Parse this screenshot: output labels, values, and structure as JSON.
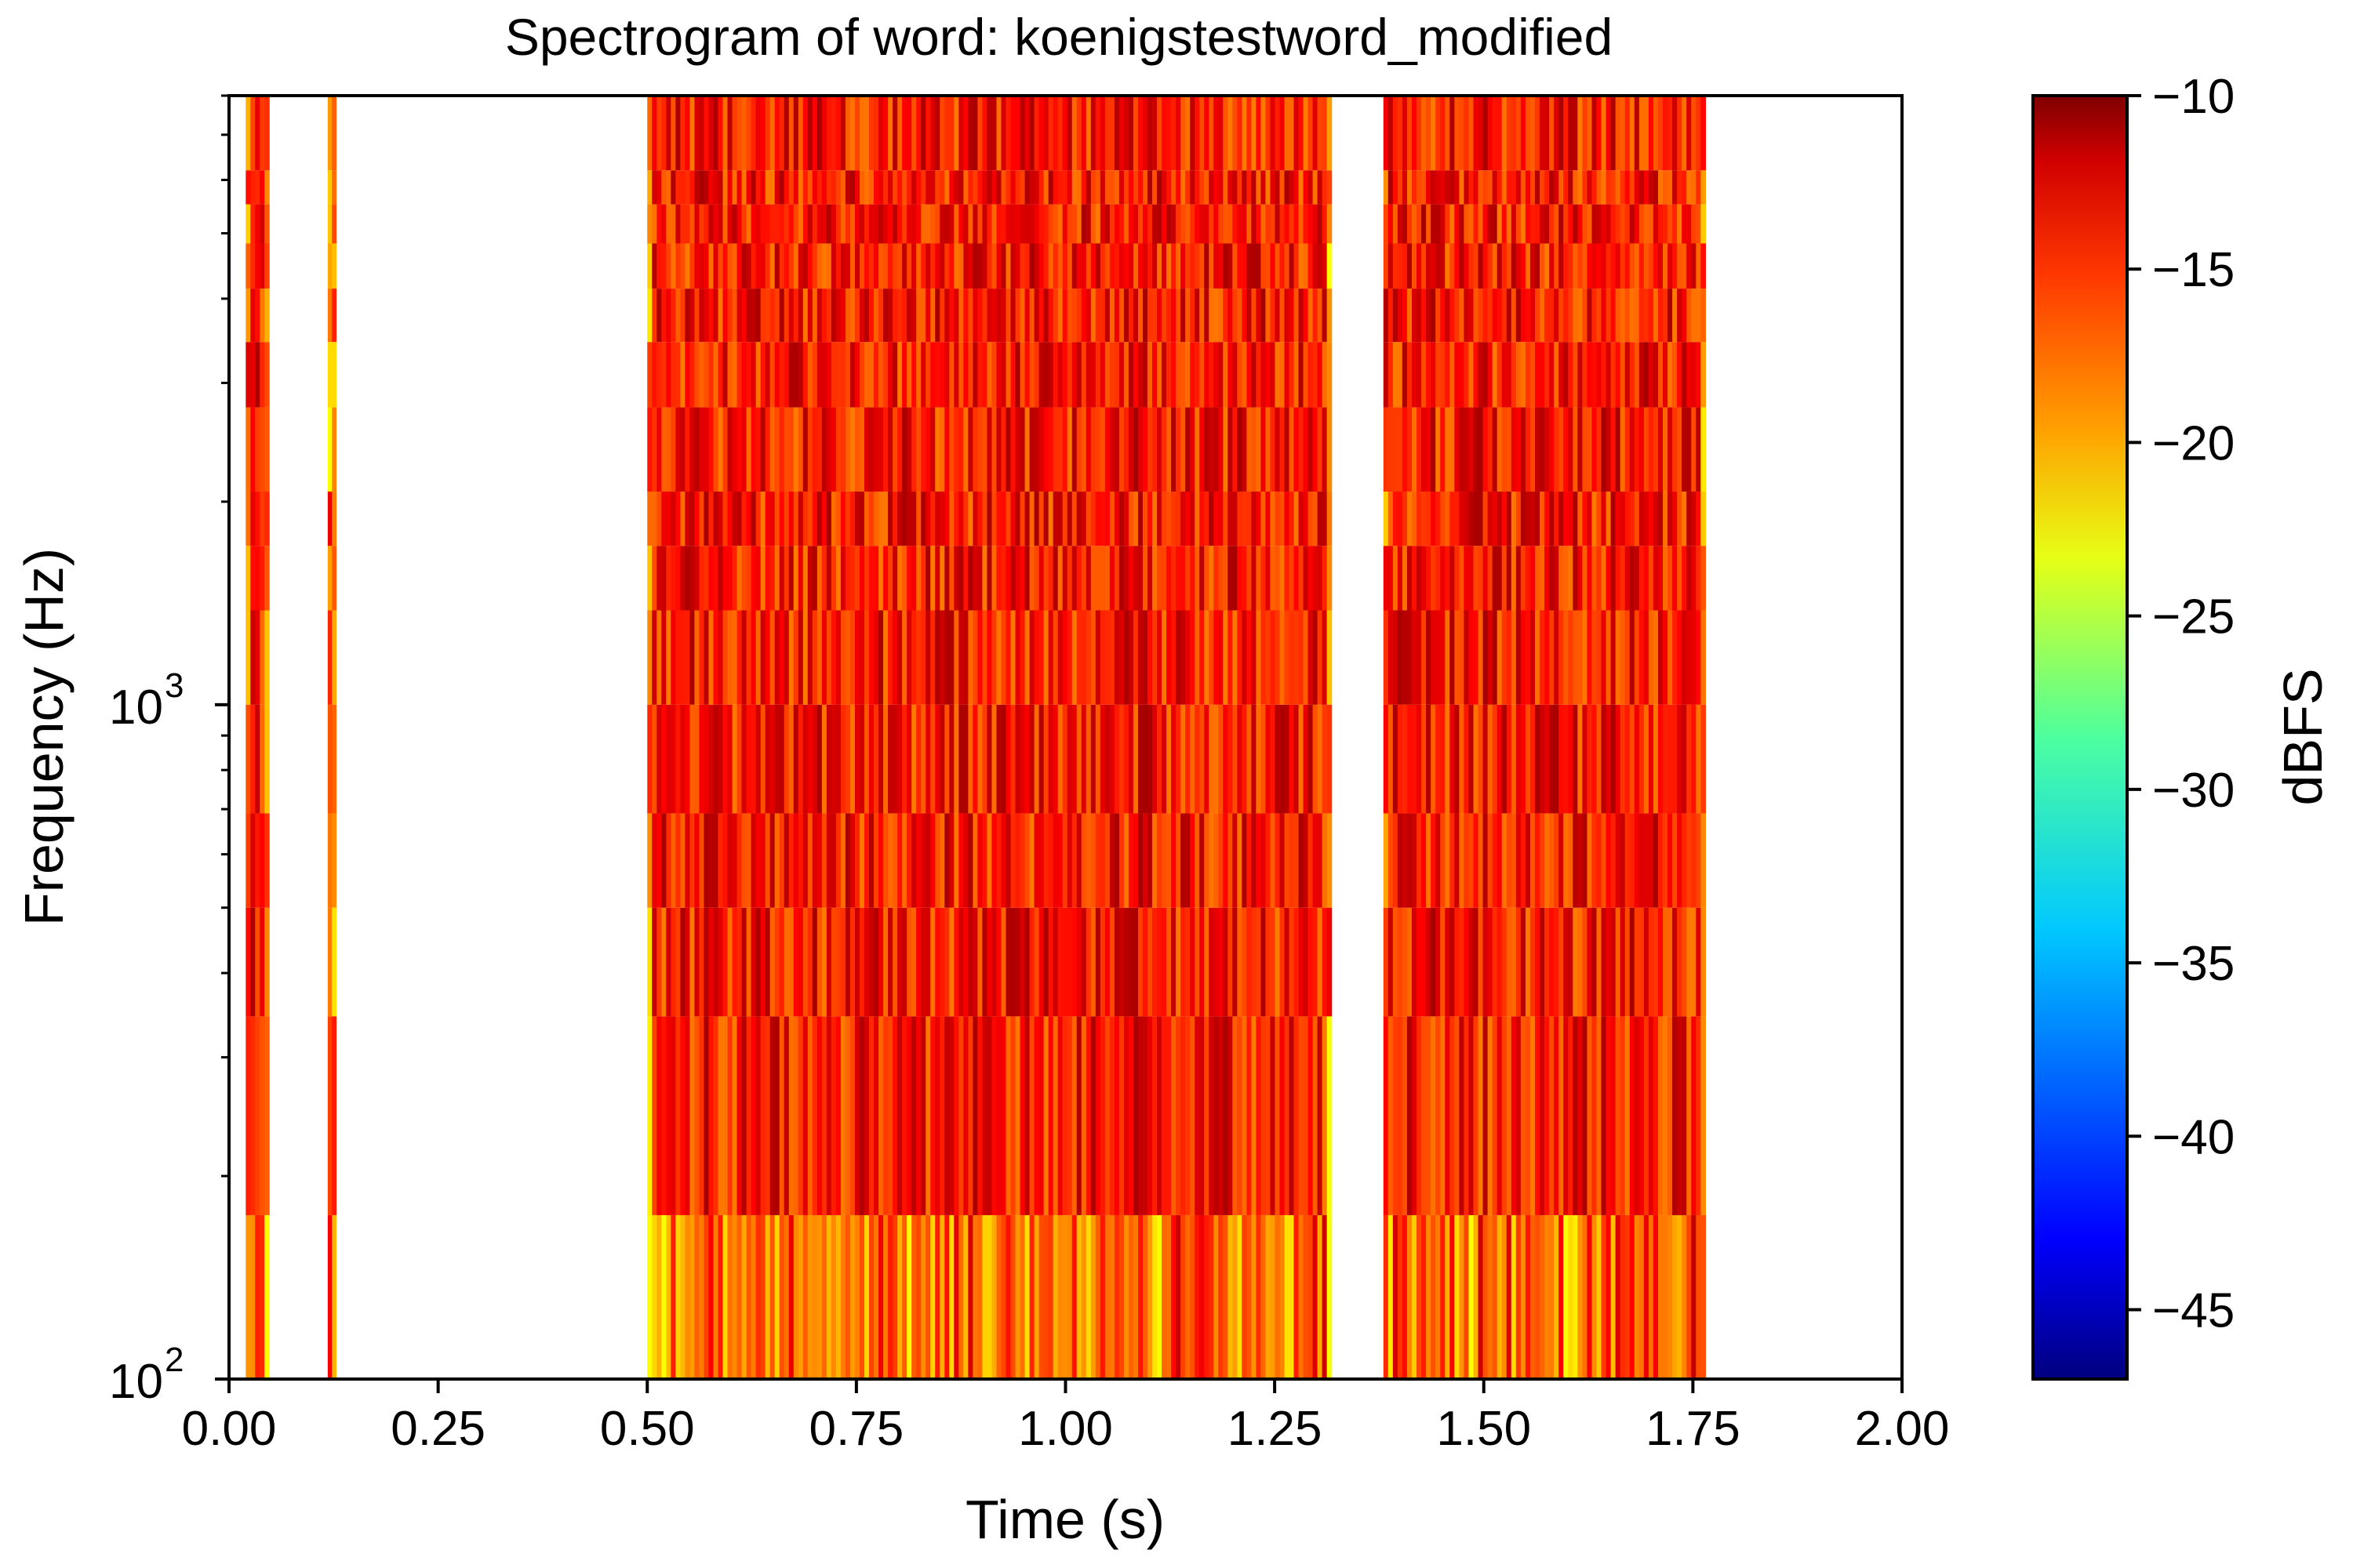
{
  "chart_data": {
    "type": "heatmap",
    "title": "Spectrogram of word: koenigstestword_modified",
    "xlabel": "Time (s)",
    "ylabel": "Frequency (Hz)",
    "xlim": [
      0,
      2.0
    ],
    "ylim": [
      100,
      8000
    ],
    "y_scale": "log",
    "x_ticks": [
      0.0,
      0.25,
      0.5,
      0.75,
      1.0,
      1.25,
      1.5,
      1.75,
      2.0
    ],
    "x_tick_labels": [
      "0.00",
      "0.25",
      "0.50",
      "0.75",
      "1.00",
      "1.25",
      "1.50",
      "1.75",
      "2.00"
    ],
    "y_major_ticks": [
      {
        "value": 100,
        "base": "10",
        "exp": "2"
      },
      {
        "value": 1000,
        "base": "10",
        "exp": "3"
      }
    ],
    "colorbar": {
      "label": "dBFS",
      "range": [
        -47,
        -10
      ],
      "ticks": [
        -10,
        -15,
        -20,
        -25,
        -30,
        -35,
        -40,
        -45
      ],
      "tick_labels": [
        "−10",
        "−15",
        "−20",
        "−25",
        "−30",
        "−35",
        "−40",
        "−45"
      ],
      "colormap": "jet"
    },
    "frequency_bins_hz": [
      100,
      175,
      345,
      500,
      690,
      1000,
      1380,
      1720,
      2070,
      2760,
      3450,
      4140,
      4830,
      5520,
      6200,
      8000
    ],
    "segments": [
      {
        "t_start": 0.02,
        "t_end": 0.048
      },
      {
        "t_start": 0.118,
        "t_end": 0.128
      },
      {
        "t_start": 0.5,
        "t_end": 1.318
      },
      {
        "t_start": 1.38,
        "t_end": 1.765
      }
    ],
    "level_range_dbfs": [
      -24,
      -10
    ],
    "grid": false,
    "legend": "none"
  }
}
